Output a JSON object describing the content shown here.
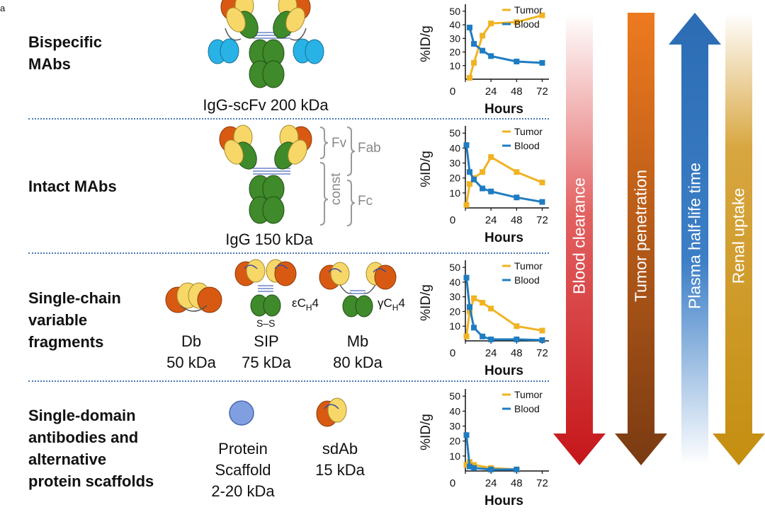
{
  "corner_mark": "a",
  "rows": [
    {
      "label": "Bispecific\nMAbs",
      "molecule_labels": [
        "IgG-scFv  200 kDa"
      ]
    },
    {
      "label": "Intact MAbs",
      "molecule_labels": [
        "IgG  150 kDa"
      ],
      "brackets": {
        "fv": "Fv",
        "fab": "Fab",
        "const": "const",
        "fc": "Fc"
      }
    },
    {
      "label": "Single-chain\nvariable\nfragments",
      "molecule_labels": [
        "Db\n50 kDa",
        "SIP\n75 kDa",
        "Mb\n80 kDa"
      ],
      "annotations": {
        "ech4": "εC",
        "ych4": "γC",
        "sub": "H",
        "four": "4",
        "ss": "S–S"
      }
    },
    {
      "label": "Single-domain\nantibodies and\nalternative\nprotein scaffolds",
      "molecule_labels": [
        "Protein\nScaffold\n2-20 kDa",
        "sdAb\n15 kDa"
      ]
    }
  ],
  "arrows": [
    {
      "label": "Blood clearance",
      "color": "#d7191c"
    },
    {
      "label": "Tumor penetration",
      "color": "#e06e10"
    },
    {
      "label": "Plasma half-life time",
      "color": "#2b6cb3"
    },
    {
      "label": "Renal uptake",
      "color": "#c9971c"
    }
  ],
  "colors": {
    "tumor": "#f0b323",
    "blood": "#1f7cc1",
    "heavy_chain": "#3f8a2a",
    "vh": "#d85a12",
    "vl": "#f6d768",
    "scfv": "#29b2e6",
    "scaffold": "#7f9fe0"
  },
  "chart_data": [
    {
      "type": "line",
      "xlabel": "Hours",
      "ylabel": "%ID/g",
      "xticks": [
        0,
        24,
        48,
        72
      ],
      "yticks": [
        10,
        20,
        30,
        40,
        50
      ],
      "xlim": [
        0,
        75
      ],
      "ylim": [
        0,
        52
      ],
      "series": [
        {
          "name": "Tumor",
          "x": [
            4,
            8,
            16,
            24,
            48,
            72
          ],
          "y": [
            1,
            12,
            32,
            41,
            42,
            47
          ]
        },
        {
          "name": "Blood",
          "x": [
            4,
            8,
            16,
            24,
            48,
            72
          ],
          "y": [
            38,
            26,
            21,
            17,
            13,
            12
          ]
        }
      ]
    },
    {
      "type": "line",
      "xlabel": "Hours",
      "ylabel": "%ID/g",
      "xticks": [
        0,
        24,
        48,
        72
      ],
      "yticks": [
        10,
        20,
        30,
        40,
        50
      ],
      "xlim": [
        0,
        75
      ],
      "ylim": [
        0,
        52
      ],
      "series": [
        {
          "name": "Tumor",
          "x": [
            1,
            4,
            8,
            16,
            24,
            48,
            72
          ],
          "y": [
            2,
            16,
            20,
            24,
            34,
            24,
            17
          ]
        },
        {
          "name": "Blood",
          "x": [
            1,
            4,
            8,
            16,
            24,
            48,
            72
          ],
          "y": [
            42,
            24,
            19,
            13,
            11,
            7,
            4
          ]
        }
      ]
    },
    {
      "type": "line",
      "xlabel": "Hours",
      "ylabel": "%ID/g",
      "xticks": [
        0,
        24,
        48,
        72
      ],
      "yticks": [
        10,
        20,
        30,
        40,
        50
      ],
      "xlim": [
        0,
        75
      ],
      "ylim": [
        0,
        52
      ],
      "series": [
        {
          "name": "Tumor",
          "x": [
            1,
            4,
            8,
            16,
            24,
            48,
            72
          ],
          "y": [
            3,
            20,
            29,
            26,
            22,
            10,
            7
          ]
        },
        {
          "name": "Blood",
          "x": [
            1,
            4,
            8,
            16,
            24,
            48,
            72
          ],
          "y": [
            43,
            23,
            9,
            3,
            1,
            1,
            0.5
          ]
        }
      ]
    },
    {
      "type": "line",
      "xlabel": "Hours",
      "ylabel": "%ID/g",
      "xticks": [
        0,
        24,
        48,
        72
      ],
      "yticks": [
        10,
        20,
        30,
        40,
        50
      ],
      "xlim": [
        0,
        75
      ],
      "ylim": [
        0,
        52
      ],
      "series": [
        {
          "name": "Tumor",
          "x": [
            1,
            4,
            8,
            24,
            48
          ],
          "y": [
            4,
            6,
            4,
            2,
            1
          ]
        },
        {
          "name": "Blood",
          "x": [
            1,
            4,
            8,
            24,
            48
          ],
          "y": [
            24,
            3,
            2,
            1,
            1
          ]
        }
      ]
    }
  ]
}
